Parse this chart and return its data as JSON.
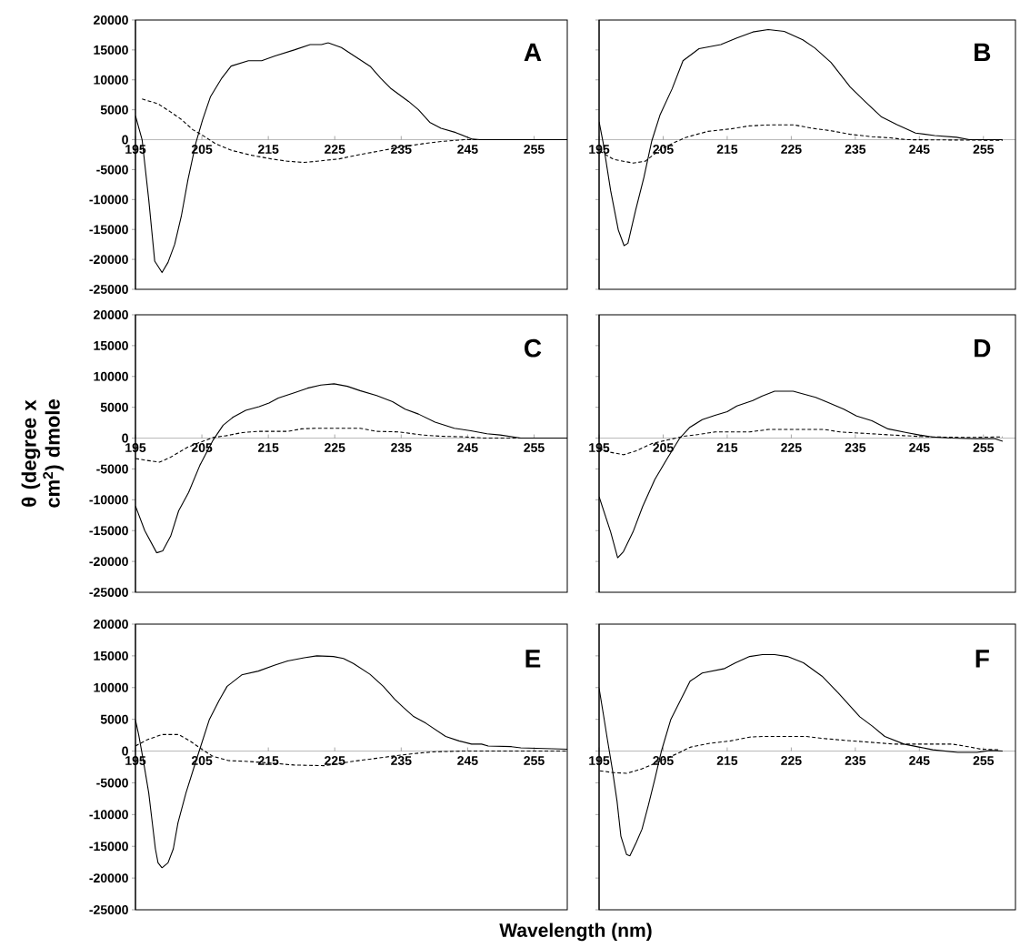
{
  "chart_data": [
    {
      "type": "line",
      "title": "A",
      "xlim": [
        195,
        260
      ],
      "ylim": [
        -25000,
        20000
      ],
      "xticks": [
        195,
        205,
        215,
        225,
        235,
        245,
        255
      ],
      "yticks": [
        -25000,
        -20000,
        -15000,
        -10000,
        -5000,
        0,
        5000,
        10000,
        15000,
        20000
      ],
      "series": [
        {
          "color": "#000000",
          "line_style": "solid",
          "x": [
            195,
            196,
            197,
            197.9,
            199,
            199.9,
            200.9,
            201.9,
            202.9,
            204.1,
            205.1,
            206.3,
            208,
            209.4,
            212,
            214,
            216,
            218.9,
            221.3,
            223,
            224,
            226,
            228.2,
            230.4,
            231.9,
            233.4,
            236.1,
            237.6,
            239.3,
            241,
            243.2,
            245.7,
            246.9,
            260
          ],
          "values": [
            4000,
            0,
            -10000,
            -20300,
            -22200,
            -20500,
            -17500,
            -12800,
            -6700,
            -500,
            3300,
            7200,
            10300,
            12300,
            13200,
            13200,
            14000,
            15000,
            15900,
            15900,
            16200,
            15400,
            13800,
            12200,
            10300,
            8600,
            6400,
            5000,
            2900,
            1900,
            1200,
            100,
            0,
            0
          ]
        },
        {
          "color": "#000000",
          "line_style": "dashed",
          "x": [
            196,
            197.2,
            198.4,
            200.2,
            201.9,
            203.6,
            205.3,
            207.1,
            209.5,
            212.5,
            215.4,
            217.9,
            220.3,
            222.3,
            225.7,
            228.7,
            231.7,
            234.6,
            238.1,
            241,
            244.5,
            260
          ],
          "values": [
            6800,
            6400,
            6000,
            4700,
            3400,
            1700,
            600,
            -700,
            -1800,
            -2600,
            -3200,
            -3600,
            -3800,
            -3600,
            -3200,
            -2500,
            -1900,
            -1300,
            -700,
            -300,
            0,
            0
          ]
        }
      ]
    },
    {
      "type": "line",
      "title": "B",
      "tick_labels": "x",
      "xlim": [
        195,
        260
      ],
      "ylim": [
        -25000,
        20000
      ],
      "xticks": [
        195,
        205,
        215,
        225,
        235,
        245,
        255
      ],
      "yticks": [
        -25000,
        -20000,
        -15000,
        -10000,
        -5000,
        0,
        5000,
        10000,
        15000,
        20000
      ],
      "series": [
        {
          "color": "#000000",
          "line_style": "solid",
          "x": [
            195,
            195.6,
            196.8,
            198,
            198.9,
            199.5,
            200.7,
            202,
            203.2,
            204.5,
            206.4,
            208.1,
            210.6,
            214,
            216.5,
            219,
            221.4,
            223.9,
            226.8,
            228.7,
            231.2,
            234.2,
            236.6,
            239.1,
            241.5,
            244.4,
            247.4,
            250.8,
            252.8,
            258
          ],
          "values": [
            3000,
            -300,
            -8500,
            -15100,
            -17700,
            -17300,
            -11800,
            -6300,
            -300,
            4100,
            8500,
            13200,
            15200,
            15900,
            17000,
            18000,
            18400,
            18100,
            16700,
            15300,
            12900,
            8800,
            6300,
            3800,
            2500,
            1100,
            700,
            400,
            0,
            0
          ]
        },
        {
          "color": "#000000",
          "line_style": "dashed",
          "x": [
            195.1,
            197.3,
            200.3,
            202.2,
            204.6,
            207.1,
            208.6,
            212,
            215.5,
            218.4,
            221.9,
            225.3,
            228.3,
            231.2,
            234.2,
            237.6,
            240.5,
            243,
            258
          ],
          "values": [
            -1900,
            -3300,
            -3900,
            -3600,
            -1600,
            -300,
            400,
            1400,
            1800,
            2300,
            2500,
            2500,
            1900,
            1500,
            900,
            500,
            300,
            0,
            -100
          ]
        }
      ]
    },
    {
      "type": "line",
      "title": "C",
      "ylabel": "θ (degree x cm$^{2}$) dmole",
      "xlim": [
        195,
        260
      ],
      "ylim": [
        -25000,
        20000
      ],
      "xticks": [
        195,
        205,
        215,
        225,
        235,
        245,
        255
      ],
      "yticks": [
        -25000,
        -20000,
        -15000,
        -10000,
        -5000,
        0,
        5000,
        10000,
        15000,
        20000
      ],
      "series": [
        {
          "color": "#000000",
          "line_style": "solid",
          "x": [
            195,
            196.4,
            198.2,
            199.1,
            200.3,
            201.5,
            203,
            204.7,
            206.7,
            208.2,
            209.7,
            211.6,
            213.6,
            215.1,
            216.5,
            219,
            220.9,
            222.9,
            224.9,
            226.9,
            228.8,
            231.3,
            233.7,
            235.6,
            237.6,
            240.1,
            243,
            245.5,
            247.9,
            249.9,
            253,
            260
          ],
          "values": [
            -11000,
            -15000,
            -18600,
            -18300,
            -15900,
            -11800,
            -8800,
            -4400,
            -300,
            2100,
            3400,
            4500,
            5100,
            5700,
            6500,
            7400,
            8100,
            8600,
            8800,
            8400,
            7700,
            6900,
            5900,
            4700,
            3900,
            2600,
            1600,
            1200,
            700,
            500,
            0,
            0
          ]
        },
        {
          "color": "#000000",
          "line_style": "dashed",
          "x": [
            195,
            196.6,
            198.6,
            200.3,
            202.8,
            204.7,
            206.7,
            208.7,
            211.1,
            213.6,
            218,
            220,
            222,
            228.8,
            231.3,
            234.7,
            238.2,
            241.1,
            244.6,
            247.5,
            260
          ],
          "values": [
            -3300,
            -3600,
            -3900,
            -3100,
            -1500,
            -700,
            100,
            400,
            900,
            1100,
            1100,
            1500,
            1600,
            1600,
            1100,
            1000,
            500,
            300,
            200,
            0,
            0
          ]
        }
      ]
    },
    {
      "type": "line",
      "title": "D",
      "tick_labels": "x",
      "xlim": [
        195,
        260
      ],
      "ylim": [
        -25000,
        20000
      ],
      "xticks": [
        195,
        205,
        215,
        225,
        235,
        245,
        255
      ],
      "yticks": [
        -25000,
        -20000,
        -15000,
        -10000,
        -5000,
        0,
        5000,
        10000,
        15000,
        20000
      ],
      "series": [
        {
          "color": "#000000",
          "line_style": "solid",
          "x": [
            195,
            196.8,
            197.9,
            198.8,
            200.3,
            201.8,
            203.7,
            205.7,
            207.6,
            209.1,
            211.1,
            213.1,
            215,
            216.5,
            219,
            220.4,
            222.4,
            225.3,
            228.8,
            230.7,
            233.2,
            235.2,
            237.6,
            240.1,
            243,
            245,
            247,
            249.9,
            253.8,
            256.8,
            258
          ],
          "values": [
            -9500,
            -15200,
            -19400,
            -18400,
            -15200,
            -11100,
            -6700,
            -3200,
            0,
            1700,
            3000,
            3700,
            4300,
            5200,
            6100,
            6800,
            7600,
            7600,
            6600,
            5800,
            4700,
            3600,
            2800,
            1500,
            900,
            500,
            200,
            0,
            -100,
            -100,
            -500
          ]
        },
        {
          "color": "#000000",
          "line_style": "dashed",
          "x": [
            195,
            196.8,
            198.8,
            200.7,
            203.2,
            205.7,
            208.2,
            210.6,
            213.1,
            218.5,
            221.4,
            230.2,
            232.6,
            237.6,
            242.5,
            246.5,
            252.4,
            258
          ],
          "values": [
            -1700,
            -2300,
            -2700,
            -2100,
            -900,
            -300,
            300,
            600,
            1000,
            1000,
            1400,
            1400,
            1000,
            700,
            400,
            200,
            100,
            200
          ]
        }
      ]
    },
    {
      "type": "line",
      "title": "E",
      "xlabel": "Wavelength (nm)",
      "xlim": [
        195,
        260
      ],
      "ylim": [
        -25000,
        20000
      ],
      "xticks": [
        195,
        205,
        215,
        225,
        235,
        245,
        255
      ],
      "yticks": [
        -25000,
        -20000,
        -15000,
        -10000,
        -5000,
        0,
        5000,
        10000,
        15000,
        20000
      ],
      "series": [
        {
          "color": "#000000",
          "line_style": "solid",
          "x": [
            195,
            195.5,
            196.2,
            197,
            197.5,
            198,
            198.4,
            199,
            199.9,
            200.7,
            201.4,
            202.6,
            204.1,
            206.1,
            207.6,
            208.8,
            211,
            213.5,
            215.9,
            217.9,
            220.4,
            222.3,
            224.8,
            226.3,
            227.8,
            230.3,
            232.3,
            234,
            235.3,
            236.8,
            238.7,
            241.7,
            243.7,
            245.6,
            247.1,
            248.1,
            251.6,
            253,
            260
          ],
          "values": [
            4900,
            2500,
            -1600,
            -6600,
            -11000,
            -15400,
            -17600,
            -18400,
            -17600,
            -15400,
            -11300,
            -6600,
            -1600,
            4900,
            8000,
            10200,
            12000,
            12600,
            13500,
            14200,
            14700,
            15000,
            14900,
            14600,
            13800,
            12100,
            10200,
            8200,
            6900,
            5500,
            4400,
            2300,
            1600,
            1100,
            1100,
            800,
            700,
            500,
            300
          ]
        },
        {
          "color": "#000000",
          "line_style": "dashed",
          "x": [
            195,
            196.8,
            199,
            201.5,
            203.2,
            204.7,
            206.6,
            209,
            211.5,
            215.5,
            218.9,
            223.4,
            224.8,
            227.8,
            230.8,
            233.7,
            236.8,
            240.2,
            244.2,
            260
          ],
          "values": [
            800,
            1800,
            2600,
            2600,
            1600,
            500,
            -800,
            -1500,
            -1600,
            -1900,
            -2200,
            -2300,
            -2100,
            -1600,
            -1200,
            -800,
            -400,
            -100,
            0,
            0
          ]
        }
      ]
    },
    {
      "type": "line",
      "title": "F",
      "tick_labels": "x",
      "xlim": [
        195,
        260
      ],
      "ylim": [
        -25000,
        20000
      ],
      "xticks": [
        195,
        205,
        215,
        225,
        235,
        245,
        255
      ],
      "yticks": [
        -25000,
        -20000,
        -15000,
        -10000,
        -5000,
        0,
        5000,
        10000,
        15000,
        20000
      ],
      "series": [
        {
          "color": "#000000",
          "line_style": "solid",
          "x": [
            195,
            195.7,
            196.3,
            197.1,
            197.8,
            198.4,
            199.3,
            199.8,
            200.8,
            201.7,
            202.7,
            203.7,
            204.7,
            206.2,
            207.7,
            209.2,
            211.1,
            214.6,
            216.3,
            218.5,
            220.5,
            222.4,
            224.4,
            226.9,
            229.8,
            232.3,
            235.7,
            237.7,
            239.6,
            242.6,
            245.1,
            247.1,
            251,
            254,
            256,
            258
          ],
          "values": [
            9900,
            5600,
            1800,
            -3100,
            -7900,
            -13400,
            -16300,
            -16500,
            -14400,
            -12300,
            -8500,
            -4400,
            -100,
            5000,
            8000,
            11000,
            12300,
            13000,
            13900,
            14900,
            15200,
            15200,
            14900,
            13900,
            11800,
            9200,
            5400,
            3900,
            2300,
            1100,
            600,
            200,
            -200,
            -200,
            100,
            0
          ]
        },
        {
          "color": "#000000",
          "line_style": "dashed",
          "x": [
            195.1,
            197.3,
            199.3,
            201.7,
            204.7,
            207.2,
            209.2,
            212.1,
            215.5,
            218.5,
            220.5,
            227.4,
            229.8,
            233.3,
            237.2,
            241.1,
            246.1,
            250.1,
            252.6,
            254.6,
            257.5
          ],
          "values": [
            -3100,
            -3400,
            -3500,
            -2800,
            -1500,
            -400,
            600,
            1200,
            1600,
            2200,
            2300,
            2300,
            2000,
            1700,
            1400,
            1100,
            1100,
            1100,
            700,
            300,
            200
          ]
        }
      ]
    }
  ]
}
